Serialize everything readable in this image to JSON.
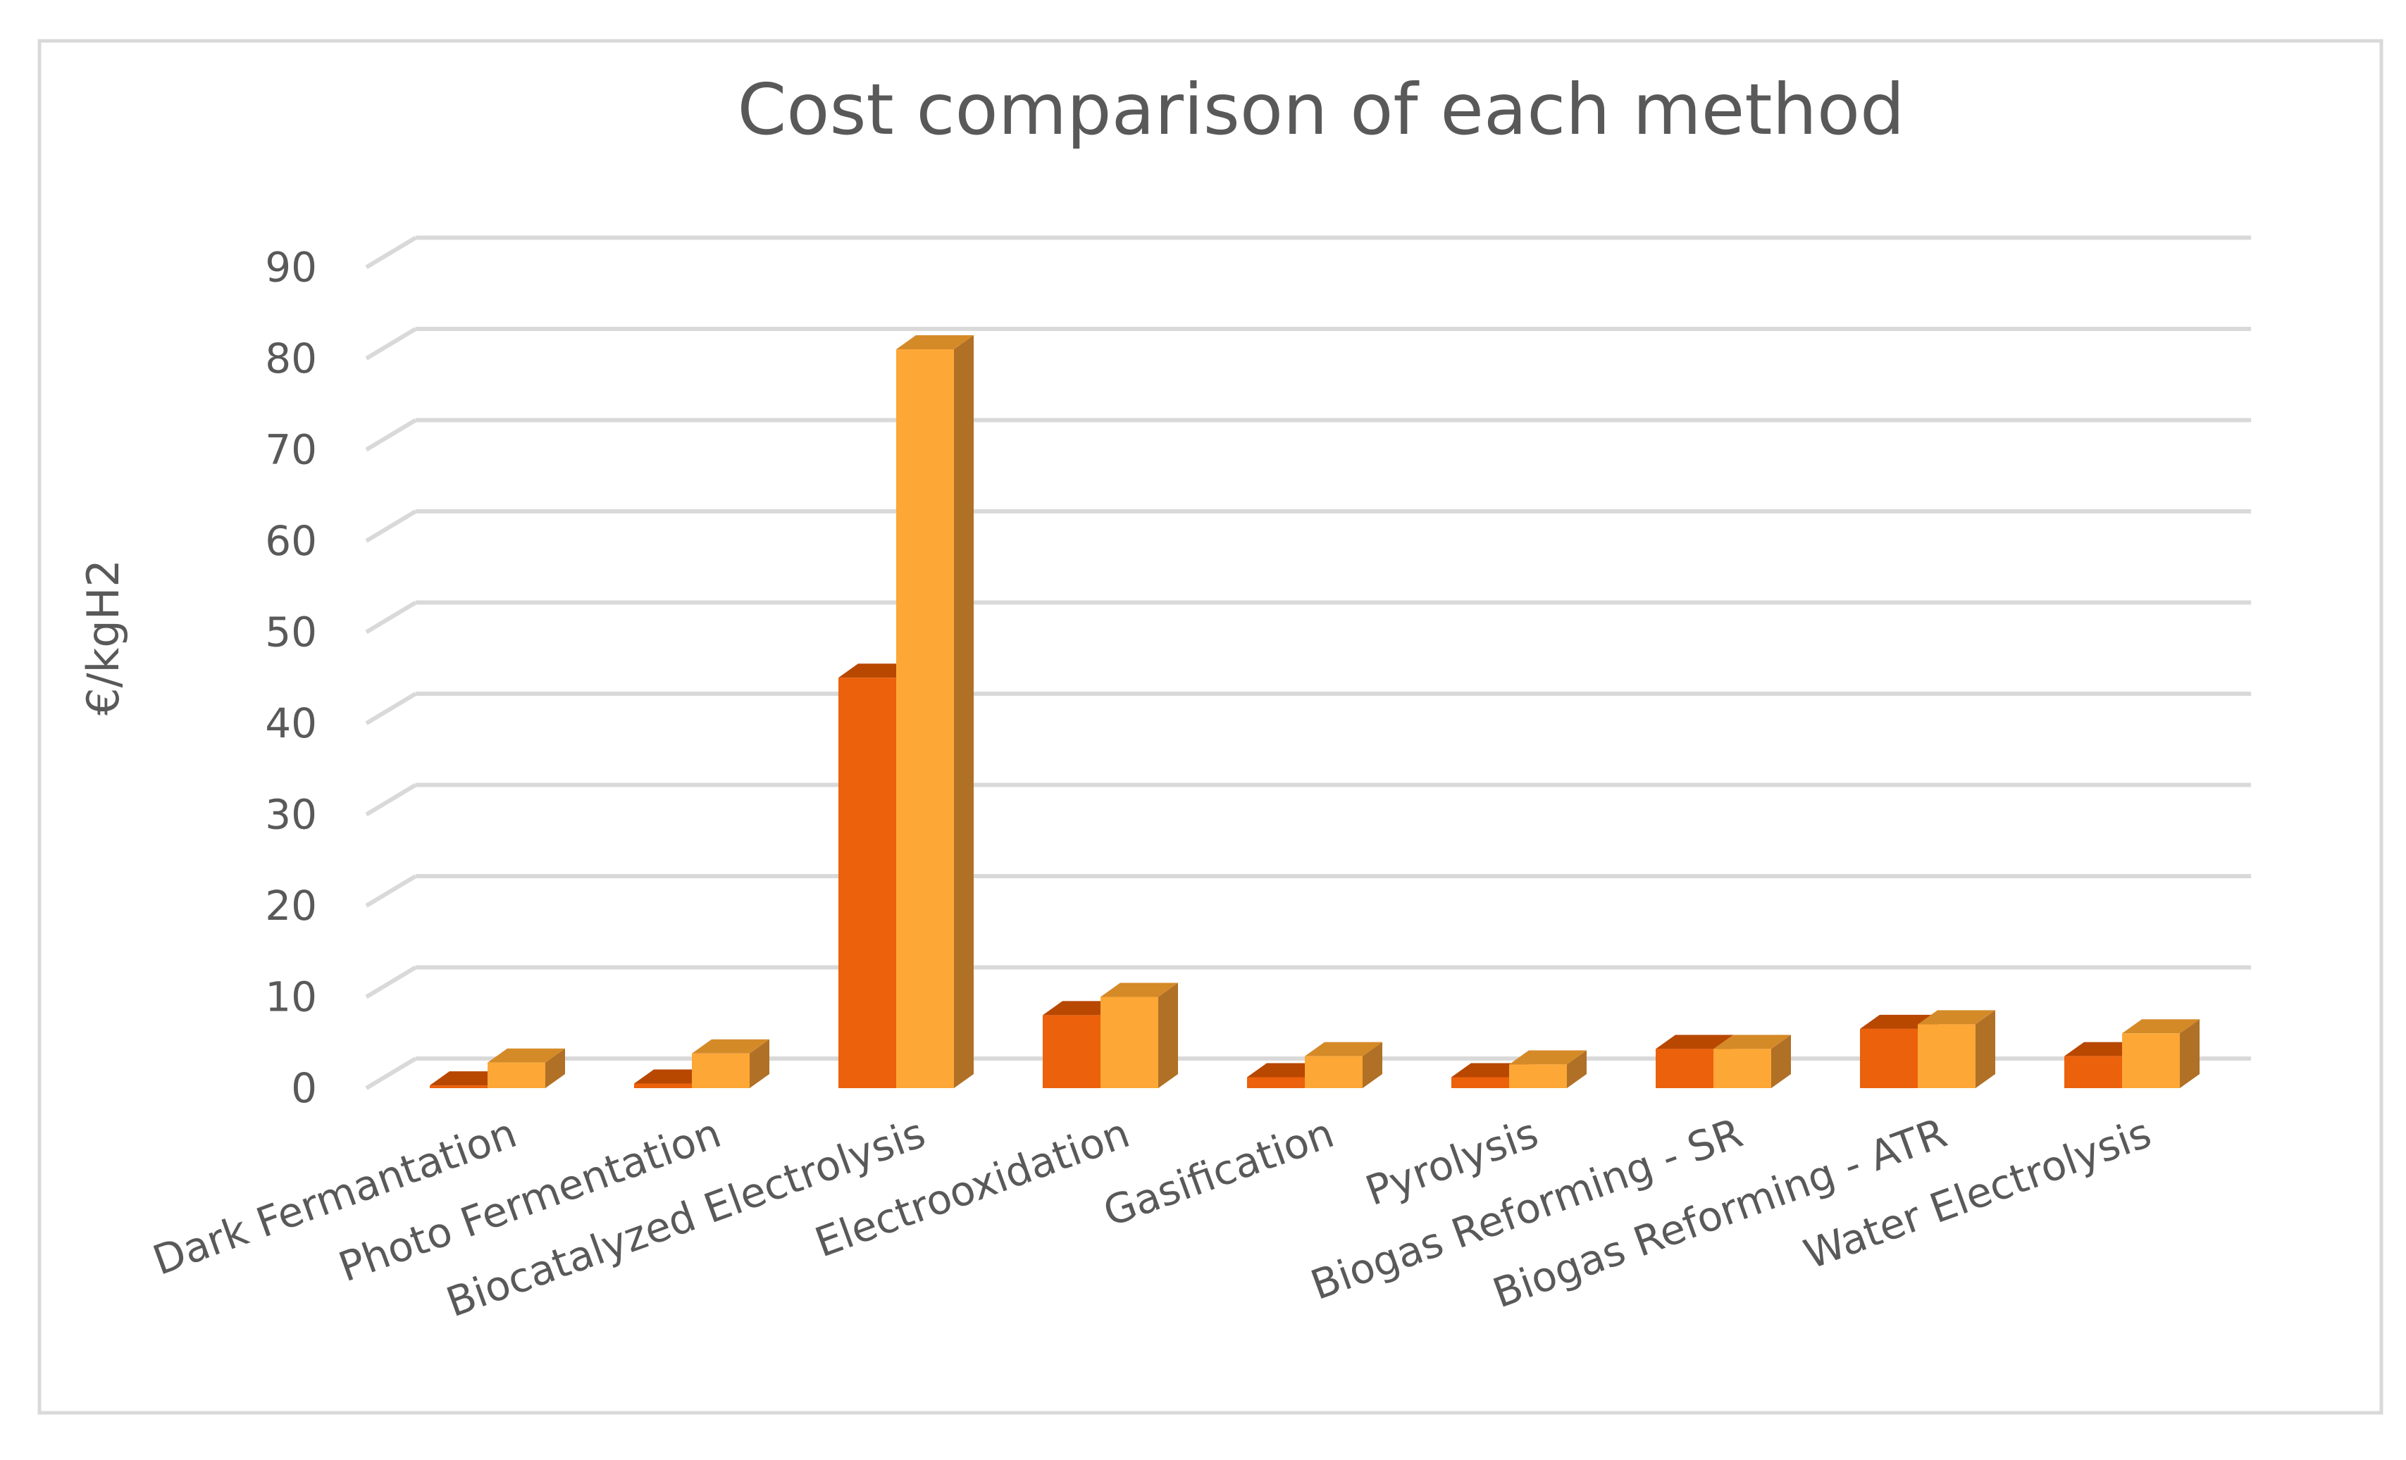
{
  "chart_data": {
    "type": "bar",
    "title": "Cost comparison of each method",
    "xlabel": "",
    "ylabel": "€/kgH2",
    "ylim": [
      0,
      90
    ],
    "yticks": [
      0,
      10,
      20,
      30,
      40,
      50,
      60,
      70,
      80,
      90
    ],
    "grid": true,
    "style": "3d-clustered-column",
    "categories": [
      "Dark Fermantation",
      "Photo Fermentation",
      "Biocatalyzed Electrolysis",
      "Electrooxidation",
      "Gasification",
      "Pyrolysis",
      "Biogas Reforming - SR",
      "Biogas Reforming - ATR",
      "Water Electrolysis"
    ],
    "series": [
      {
        "values": [
          0.3,
          0.5,
          45,
          8,
          1.2,
          1.2,
          4.3,
          6.5,
          3.5
        ],
        "color": "#EC610B",
        "top_color": "#B84700",
        "side_color": "#9E3D00"
      },
      {
        "values": [
          2.8,
          3.8,
          81,
          10,
          3.5,
          2.6,
          4.3,
          7,
          6
        ],
        "color": "#FDA736",
        "top_color": "#D58A28",
        "side_color": "#B07026"
      }
    ]
  }
}
